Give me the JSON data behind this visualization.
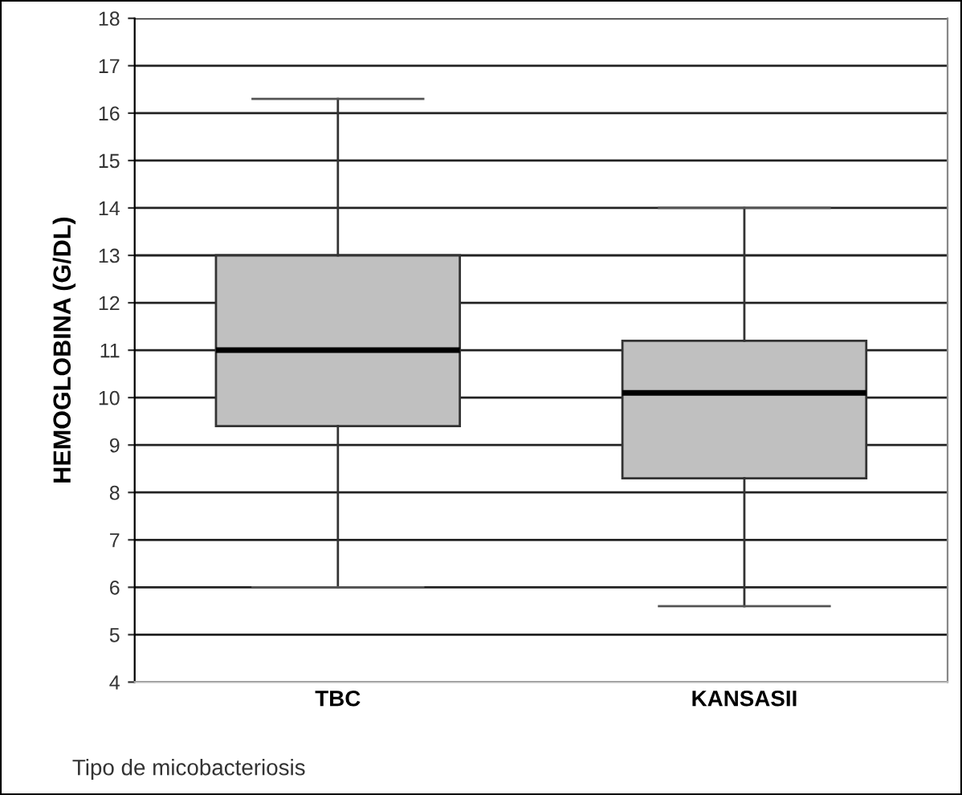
{
  "chart_data": {
    "type": "box",
    "ylabel": "HEMOGLOBINA (G/DL)",
    "xlabel": "Tipo de micobacteriosis",
    "categories": [
      "TBC",
      "KANSASII"
    ],
    "boxes": [
      {
        "low": 6,
        "q1": 9.4,
        "median": 11,
        "q3": 13,
        "high": 16.3
      },
      {
        "low": 5.6,
        "q1": 8.3,
        "median": 10.1,
        "q3": 11.2,
        "high": 14
      }
    ],
    "color": "#c0c0c0",
    "ylim": [
      4,
      18
    ],
    "yticks": [
      4,
      5,
      6,
      7,
      8,
      9,
      10,
      11,
      12,
      13,
      14,
      15,
      16,
      17,
      18
    ],
    "grid": "y"
  }
}
